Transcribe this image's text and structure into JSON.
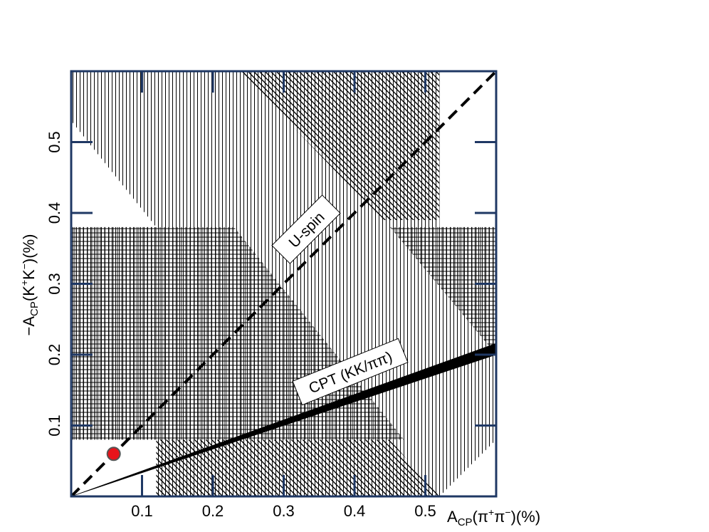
{
  "chart_data": {
    "type": "region",
    "x_label": [
      {
        "text": "A"
      },
      {
        "text": "CP",
        "shift": "sub"
      },
      {
        "text": "(π"
      },
      {
        "text": "+",
        "shift": "super"
      },
      {
        "text": "π"
      },
      {
        "text": "−",
        "shift": "super"
      },
      {
        "text": ")(%)"
      }
    ],
    "y_label": [
      {
        "text": "−A"
      },
      {
        "text": "CP",
        "shift": "sub"
      },
      {
        "text": "(K"
      },
      {
        "text": "+",
        "shift": "super"
      },
      {
        "text": "K"
      },
      {
        "text": "−",
        "shift": "super"
      },
      {
        "text": ")(%)"
      }
    ],
    "xlim": [
      0,
      0.6
    ],
    "ylim": [
      0,
      0.6
    ],
    "xticks": [
      0.1,
      0.2,
      0.3,
      0.4,
      0.5
    ],
    "yticks": [
      0.1,
      0.2,
      0.3,
      0.4,
      0.5
    ],
    "regions": [
      {
        "hatch": "vertical",
        "points": [
          [
            0,
            0.53
          ],
          [
            0,
            0.6
          ],
          [
            0.52,
            0.6
          ],
          [
            0.52,
            0.38
          ],
          [
            0.6,
            0.38
          ],
          [
            0.6,
            0.08
          ],
          [
            0.52,
            0
          ],
          [
            0.12,
            0
          ],
          [
            0.12,
            0.08
          ],
          [
            0,
            0.08
          ],
          [
            0,
            0.38
          ],
          [
            0.12,
            0.38
          ]
        ]
      },
      {
        "hatch": "grid",
        "points": [
          [
            0,
            0.38
          ],
          [
            0.23,
            0.38
          ],
          [
            0.47,
            0.08
          ],
          [
            0,
            0.08
          ]
        ]
      },
      {
        "hatch": "grid",
        "points": [
          [
            0.45,
            0.38
          ],
          [
            0.6,
            0.38
          ],
          [
            0.6,
            0.2
          ]
        ]
      },
      {
        "hatch": "diagonal",
        "points": [
          [
            0.237,
            0.6
          ],
          [
            0.52,
            0.6
          ],
          [
            0.52,
            0.39
          ],
          [
            0.44,
            0.39
          ]
        ]
      },
      {
        "hatch": "diagonal",
        "points": [
          [
            0.12,
            0.08
          ],
          [
            0.45,
            0.08
          ],
          [
            0.52,
            0
          ],
          [
            0.12,
            0
          ]
        ]
      }
    ],
    "cpt_band": [
      [
        0,
        0
      ],
      [
        0.6,
        0.2
      ],
      [
        0.6,
        0.216
      ]
    ],
    "uspin_line": {
      "x": [
        0,
        0.6
      ],
      "y": [
        0,
        0.6
      ]
    },
    "point": {
      "x": 0.06,
      "y": 0.06,
      "color": "#e8141b"
    },
    "annotations": [
      "U-spin",
      "CPT (KK/ππ)"
    ],
    "axis_color": "#1f3864"
  }
}
